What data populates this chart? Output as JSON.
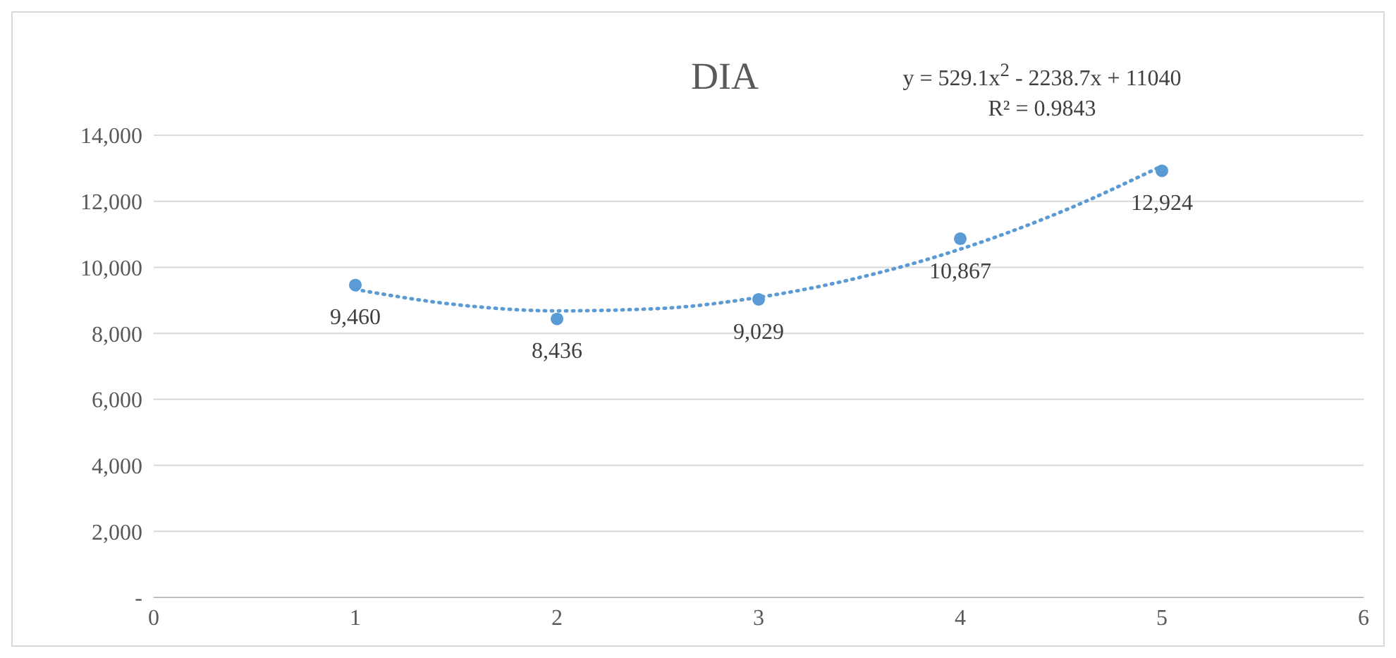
{
  "chart_data": {
    "type": "scatter",
    "title": "DIA",
    "annotations": [
      "y = 529.1x$^{2}$ - 2238.7x + 11040",
      "R² = 0.9843"
    ],
    "x": [
      1,
      2,
      3,
      4,
      5
    ],
    "series": [
      {
        "color": "#5b9bd5",
        "marker": "circle",
        "values": [
          9460,
          8436,
          9029,
          10867,
          12924
        ],
        "value_labels": [
          "9,460",
          "8,436",
          "9,029",
          "10,867",
          "12,924"
        ]
      },
      {
        "type": "line",
        "color": "#5b9bd5",
        "marker": "none",
        "line_style": "dotted",
        "x": [
          1,
          1.5,
          2,
          2.5,
          3,
          3.5,
          4,
          4.5,
          5
        ],
        "values": [
          9330,
          8870,
          8680,
          8750,
          9090,
          9690,
          10550,
          11680,
          13070
        ]
      }
    ],
    "xlim": [
      0,
      6
    ],
    "xticks": [
      0,
      1,
      2,
      3,
      4,
      5,
      6
    ],
    "ylim": [
      0,
      14000
    ],
    "yticks": [
      {
        "value": 0,
        "label": "-"
      },
      {
        "value": 2000,
        "label": "2,000"
      },
      {
        "value": 4000,
        "label": "4,000"
      },
      {
        "value": 6000,
        "label": "6,000"
      },
      {
        "value": 8000,
        "label": "8,000"
      },
      {
        "value": 10000,
        "label": "10,000"
      },
      {
        "value": 12000,
        "label": "12,000"
      },
      {
        "value": 14000,
        "label": "14,000"
      }
    ],
    "grid": "y"
  }
}
